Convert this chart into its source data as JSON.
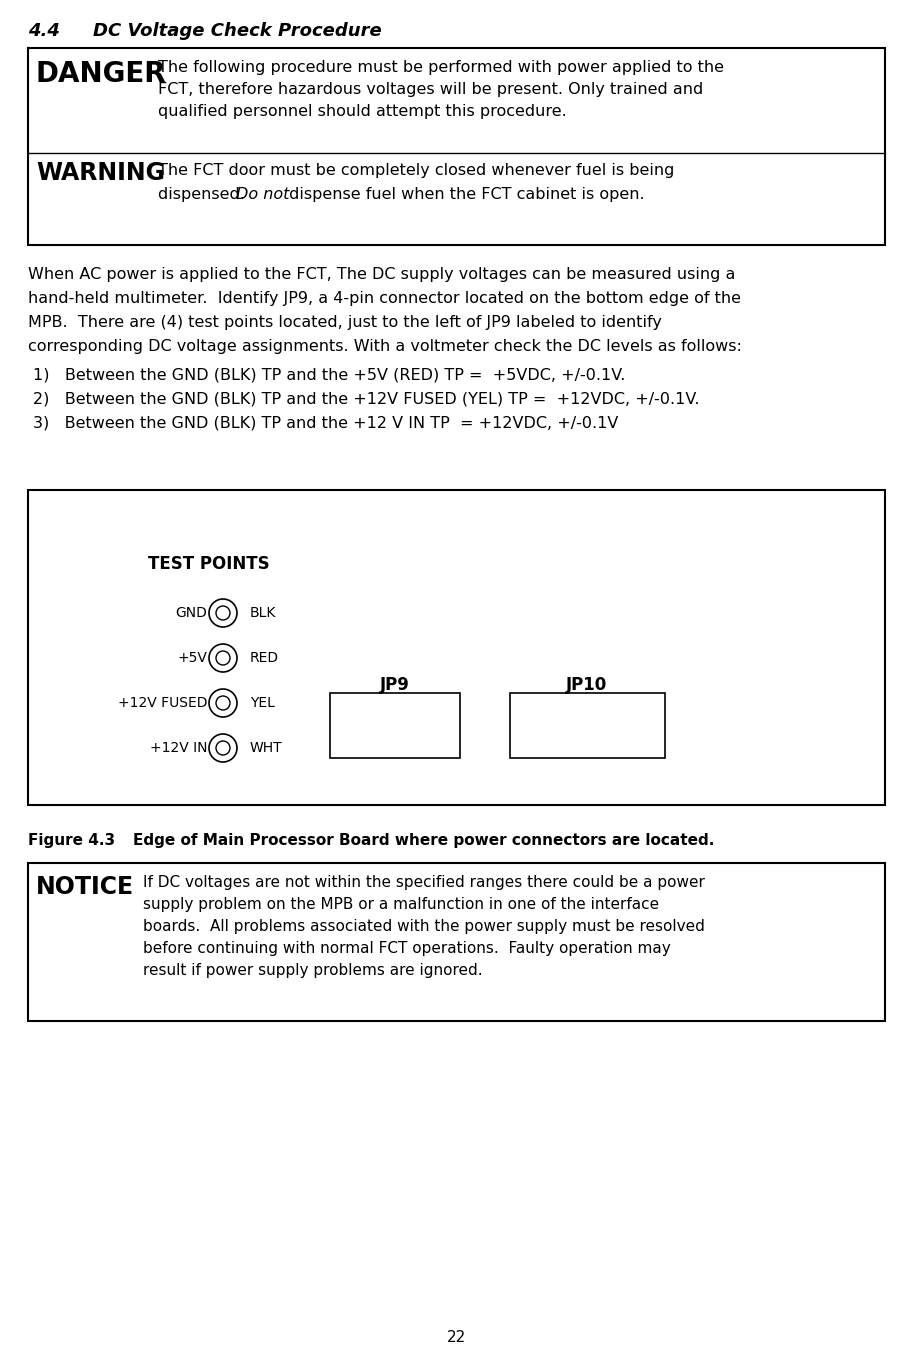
{
  "title_num": "4.4",
  "title_text": "DC Voltage Check Procedure",
  "danger_label": "DANGER",
  "danger_text_line1": "The following procedure must be performed with power applied to the",
  "danger_text_line2": "FCT, therefore hazardous voltages will be present. Only trained and",
  "danger_text_line3": "qualified personnel should attempt this procedure.",
  "warning_label": "WARNING",
  "warning_line1": "The FCT door must be completely closed whenever fuel is being",
  "warning_line2a": "dispensed.  ",
  "warning_line2b": "Do not",
  "warning_line2c": " dispense fuel when the FCT cabinet is open.",
  "body_lines": [
    "When AC power is applied to the FCT, The DC supply voltages can be measured using a",
    "hand-held multimeter.  Identify JP9, a 4-pin connector located on the bottom edge of the",
    "MPB.  There are (4) test points located, just to the left of JP9 labeled to identify",
    "corresponding DC voltage assignments. With a voltmeter check the DC levels as follows:"
  ],
  "list_items": [
    "1)   Between the GND (BLK) TP and the +5V (RED) TP =  +5VDC, +/-0.1V.",
    "2)   Between the GND (BLK) TP and the +12V FUSED (YEL) TP =  +12VDC, +/-0.1V.",
    "3)   Between the GND (BLK) TP and the +12 V IN TP  = +12VDC, +/-0.1V"
  ],
  "diagram_test_points_label": "TEST POINTS",
  "diagram_rows": [
    {
      "label": "GND",
      "color_text": "BLK"
    },
    {
      "label": "+5V",
      "color_text": "RED"
    },
    {
      "label": "+12V FUSED",
      "color_text": "YEL"
    },
    {
      "label": "+12V IN",
      "color_text": "WHT"
    }
  ],
  "jp9_label": "JP9",
  "jp10_label": "JP10",
  "figure_label": "Figure 4.3",
  "figure_caption": "Edge of Main Processor Board where power connectors are located.",
  "notice_label": "NOTICE",
  "notice_lines": [
    "If DC voltages are not within the specified ranges there could be a power",
    "supply problem on the MPB or a malfunction in one of the interface",
    "boards.  All problems associated with the power supply must be resolved",
    "before continuing with normal FCT operations.  Faulty operation may",
    "result if power supply problems are ignored."
  ],
  "page_number": "22",
  "bg_color": "#ffffff",
  "text_color": "#000000",
  "border_color": "#000000"
}
